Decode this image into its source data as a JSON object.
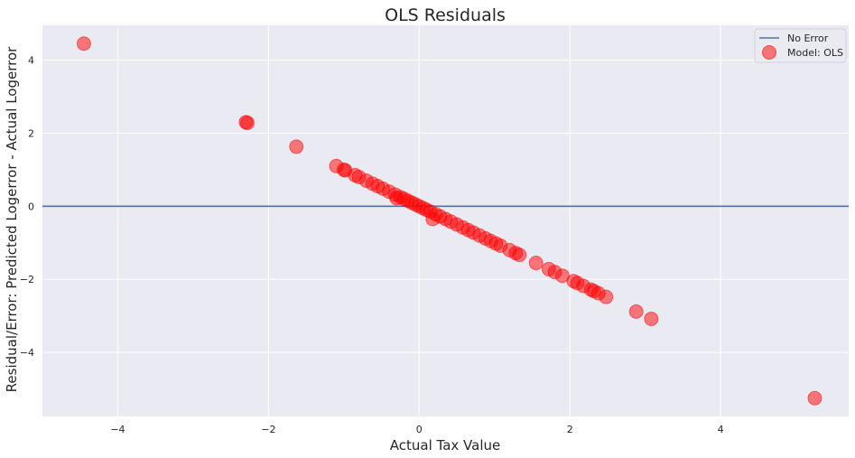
{
  "chart_data": {
    "type": "scatter",
    "title": "OLS Residuals",
    "xlabel": "Actual Tax Value",
    "ylabel": "Residual/Error: Predicted Logerror - Actual Logerror",
    "xlim": [
      -5.0,
      5.7
    ],
    "ylim": [
      -5.75,
      4.95
    ],
    "xticks": [
      -4,
      -2,
      0,
      2,
      4
    ],
    "yticks": [
      -4,
      -2,
      0,
      2,
      4
    ],
    "xtick_labels": [
      "−4",
      "−2",
      "0",
      "2",
      "4"
    ],
    "ytick_labels": [
      "−4",
      "−2",
      "0",
      "2",
      "4"
    ],
    "grid": true,
    "legend_position": "top-right",
    "colors": {
      "background": "#EAEAF2",
      "grid": "#FFFFFF",
      "line": "#4C72B0",
      "points": "#FF0000"
    },
    "hline": {
      "name": "No Error",
      "y": 0
    },
    "series": [
      {
        "name": "Model: OLS",
        "x": [
          -4.45,
          -2.3,
          -2.28,
          -1.63,
          -1.1,
          -1.0,
          -0.98,
          -0.85,
          -0.8,
          -0.7,
          -0.62,
          -0.55,
          -0.48,
          -0.4,
          -0.32,
          -0.3,
          -0.25,
          -0.2,
          -0.15,
          -0.1,
          -0.05,
          0.0,
          0.05,
          0.1,
          0.15,
          0.18,
          0.22,
          0.28,
          0.35,
          0.42,
          0.5,
          0.58,
          0.65,
          0.72,
          0.8,
          0.88,
          0.95,
          1.02,
          1.08,
          1.2,
          1.28,
          1.33,
          1.55,
          1.72,
          1.8,
          1.9,
          2.05,
          2.1,
          2.18,
          2.28,
          2.32,
          2.38,
          2.48,
          2.88,
          3.08,
          5.25
        ],
        "y": [
          4.45,
          2.3,
          2.28,
          1.63,
          1.1,
          1.0,
          0.98,
          0.85,
          0.8,
          0.7,
          0.62,
          0.55,
          0.48,
          0.4,
          0.32,
          0.22,
          0.25,
          0.2,
          0.15,
          0.1,
          0.05,
          0.0,
          -0.05,
          -0.1,
          -0.15,
          -0.35,
          -0.22,
          -0.28,
          -0.35,
          -0.42,
          -0.5,
          -0.58,
          -0.65,
          -0.72,
          -0.8,
          -0.88,
          -0.95,
          -1.02,
          -1.08,
          -1.2,
          -1.28,
          -1.33,
          -1.55,
          -1.72,
          -1.8,
          -1.9,
          -2.05,
          -2.1,
          -2.18,
          -2.28,
          -2.32,
          -2.38,
          -2.48,
          -2.88,
          -3.08,
          -5.25
        ]
      }
    ]
  }
}
